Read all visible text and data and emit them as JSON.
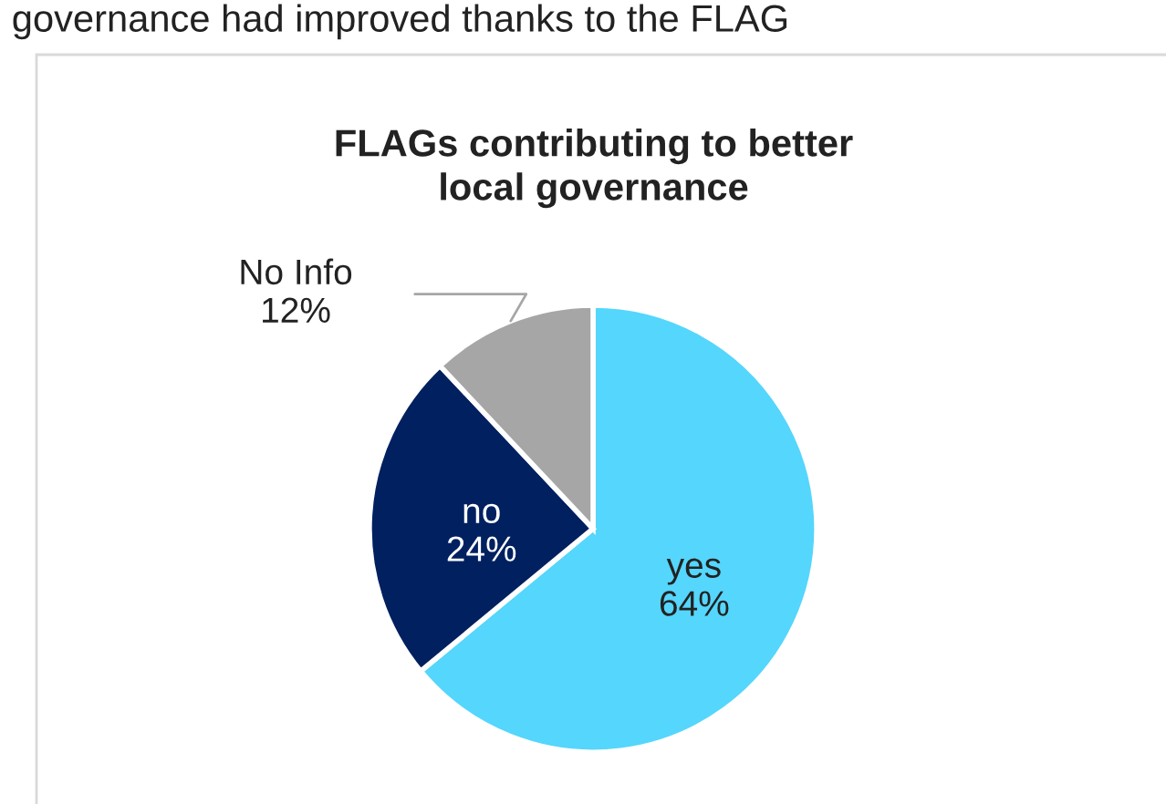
{
  "chart_data": {
    "type": "pie",
    "title": "FLAGs contributing to better\nlocal governance",
    "annotations": [
      "governance had improved thanks to the FLAG"
    ],
    "categories": [
      "yes",
      "no",
      "No Info"
    ],
    "values": [
      64,
      24,
      12
    ],
    "value_labels": [
      "64%",
      "24%",
      "12%"
    ],
    "colors": [
      "#55d6fc",
      "#002060",
      "#a6a6a6"
    ]
  }
}
